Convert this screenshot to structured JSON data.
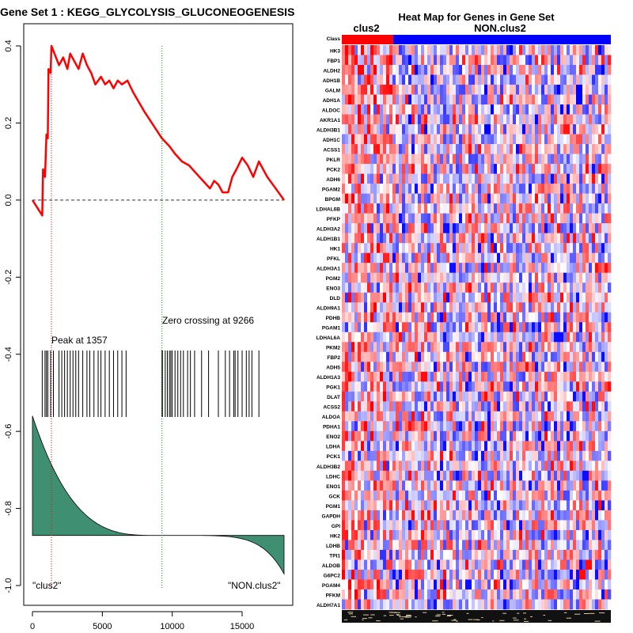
{
  "chart_data": [
    {
      "type": "line",
      "title": "Gene Set  1 : KEGG_GLYCOLYSIS_GLUCONEOGENESIS",
      "xlim": [
        0,
        18000
      ],
      "ylim": [
        -1.0,
        0.4
      ],
      "x_ticks": [
        "0",
        "5000",
        "10000",
        "15000"
      ],
      "y_ticks": [
        "-1.0",
        "-0.8",
        "-0.6",
        "-0.4",
        "-0.2",
        "0.0",
        "0.2",
        "0.4"
      ],
      "series": [
        {
          "values": [
            [
              0,
              0.0
            ],
            [
              700,
              -0.04
            ],
            [
              760,
              0.08
            ],
            [
              900,
              0.06
            ],
            [
              1000,
              0.17
            ],
            [
              1100,
              0.16
            ],
            [
              1150,
              0.34
            ],
            [
              1300,
              0.33
            ],
            [
              1357,
              0.4
            ],
            [
              1900,
              0.35
            ],
            [
              2200,
              0.37
            ],
            [
              2500,
              0.34
            ],
            [
              2700,
              0.38
            ],
            [
              3000,
              0.36
            ],
            [
              3300,
              0.34
            ],
            [
              3600,
              0.38
            ],
            [
              3900,
              0.35
            ],
            [
              4200,
              0.33
            ],
            [
              4500,
              0.3
            ],
            [
              4900,
              0.32
            ],
            [
              5200,
              0.3
            ],
            [
              5500,
              0.31
            ],
            [
              5800,
              0.29
            ],
            [
              6100,
              0.31
            ],
            [
              6400,
              0.3
            ],
            [
              6800,
              0.31
            ],
            [
              7200,
              0.28
            ],
            [
              8000,
              0.23
            ],
            [
              9266,
              0.16
            ],
            [
              9800,
              0.14
            ],
            [
              10200,
              0.12
            ],
            [
              10700,
              0.1
            ],
            [
              11200,
              0.09
            ],
            [
              11700,
              0.07
            ],
            [
              12200,
              0.05
            ],
            [
              12700,
              0.03
            ],
            [
              13000,
              0.05
            ],
            [
              13300,
              0.04
            ],
            [
              13600,
              0.02
            ],
            [
              14000,
              0.02
            ],
            [
              14300,
              0.06
            ],
            [
              14600,
              0.08
            ],
            [
              15000,
              0.11
            ],
            [
              15400,
              0.09
            ],
            [
              15800,
              0.06
            ],
            [
              16200,
              0.1
            ],
            [
              16800,
              0.06
            ],
            [
              17400,
              0.03
            ],
            [
              18000,
              0.0
            ]
          ]
        }
      ],
      "annotations": {
        "peak_label": "Peak at 1357",
        "peak_x": 1357,
        "zero_label": "Zero crossing at 9266",
        "zero_x": 9266,
        "left_class": "\"clus2\"",
        "right_class": "\"NON.clus2\""
      },
      "hit_positions": [
        700,
        900,
        1000,
        1100,
        1300,
        1500,
        1900,
        2100,
        2300,
        2500,
        2700,
        2900,
        3100,
        3300,
        3600,
        3900,
        4100,
        4400,
        4700,
        4900,
        5200,
        5500,
        5800,
        6100,
        6400,
        6700,
        9266,
        9300,
        9500,
        9650,
        9800,
        9900,
        10000,
        10200,
        10400,
        10600,
        10800,
        11100,
        11300,
        11600,
        12100,
        12600,
        13300,
        13800,
        14100,
        14400,
        14500,
        14700,
        15000,
        15300,
        15500,
        15700,
        16200
      ],
      "colors": {
        "line": "#ff0000",
        "peak_line": "#ff0000",
        "zero_line": "#00a000",
        "fill": "#3f8f73"
      }
    },
    {
      "type": "heatmap",
      "title": "Heat Map for Genes in Gene Set",
      "groups": [
        "clus2",
        "NON.clus2"
      ],
      "class_label": "Class",
      "genes": [
        "HK3",
        "FBP1",
        "ALDH2",
        "ADH1B",
        "GALM",
        "ADH1A",
        "ALDOC",
        "AKR1A1",
        "ALDH3B1",
        "ADH1C",
        "ACSS1",
        "PKLR",
        "PCK2",
        "ADH6",
        "PGAM2",
        "BPGM",
        "LDHAL6B",
        "PFKP",
        "ALDH3A2",
        "ALDH1B1",
        "HK1",
        "PFKL",
        "ALDH3A1",
        "PGM2",
        "ENO3",
        "DLD",
        "ALDH9A1",
        "PDHB",
        "PGAM1",
        "LDHAL6A",
        "PKM2",
        "FBP2",
        "ADH5",
        "ALDH1A3",
        "PGK1",
        "DLAT",
        "ACSS2",
        "ALDOA",
        "PDHA1",
        "ENO2",
        "LDHA",
        "PCK1",
        "ALDH3B2",
        "LDHC",
        "ENO1",
        "GCK",
        "PGM1",
        "GAPDH",
        "GPI",
        "HK2",
        "LDHB",
        "TPI1",
        "ALDOB",
        "G6PC2",
        "PGAM4",
        "PFKM",
        "ALDH7A1"
      ],
      "colors": {
        "clus2": "#ff0000",
        "non_clus2": "#0000ff",
        "high": "#ff0000",
        "low": "#0000ff"
      }
    }
  ]
}
